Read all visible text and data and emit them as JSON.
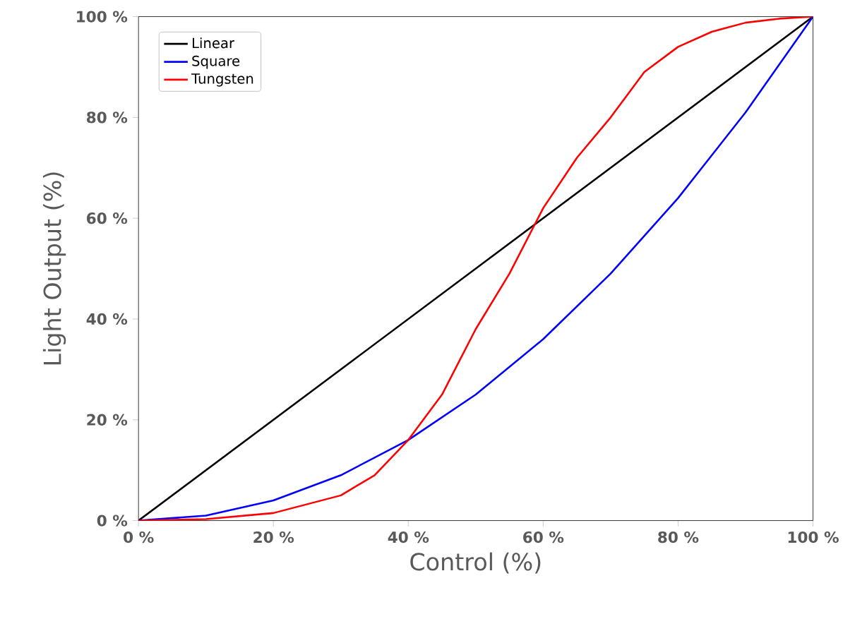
{
  "chart_data": {
    "type": "line",
    "xlabel": "Control (%)",
    "ylabel": "Light Output (%)",
    "xlim": [
      0,
      100
    ],
    "ylim": [
      0,
      100
    ],
    "xticks": [
      {
        "value": 0,
        "label": "0 %"
      },
      {
        "value": 20,
        "label": "20 %"
      },
      {
        "value": 40,
        "label": "40 %"
      },
      {
        "value": 60,
        "label": "60 %"
      },
      {
        "value": 80,
        "label": "80 %"
      },
      {
        "value": 100,
        "label": "100 %"
      }
    ],
    "yticks": [
      {
        "value": 0,
        "label": "0 %"
      },
      {
        "value": 20,
        "label": "20 %"
      },
      {
        "value": 40,
        "label": "40 %"
      },
      {
        "value": 60,
        "label": "60 %"
      },
      {
        "value": 80,
        "label": "80 %"
      },
      {
        "value": 100,
        "label": "100 %"
      }
    ],
    "legend": "top left",
    "grid": false,
    "marker": "none",
    "line_style": "solid",
    "series": [
      {
        "name": "Linear",
        "color": "#000000",
        "x": [
          0,
          100
        ],
        "values": [
          0,
          100
        ]
      },
      {
        "name": "Square",
        "color": "#0000ff",
        "x": [
          0,
          10,
          20,
          30,
          40,
          50,
          60,
          70,
          80,
          90,
          100
        ],
        "values": [
          0,
          1,
          4,
          9,
          16,
          25,
          36,
          49,
          64,
          81,
          100
        ]
      },
      {
        "name": "Tungsten",
        "color": "#ff0000",
        "x": [
          0,
          10,
          20,
          30,
          35,
          40,
          45,
          50,
          55,
          60,
          65,
          70,
          75,
          80,
          85,
          90,
          95,
          100
        ],
        "values": [
          0,
          0.3,
          1.5,
          5,
          9,
          16,
          25,
          38,
          49,
          62,
          72,
          80,
          89,
          94,
          97,
          98.8,
          99.6,
          100
        ]
      }
    ]
  }
}
